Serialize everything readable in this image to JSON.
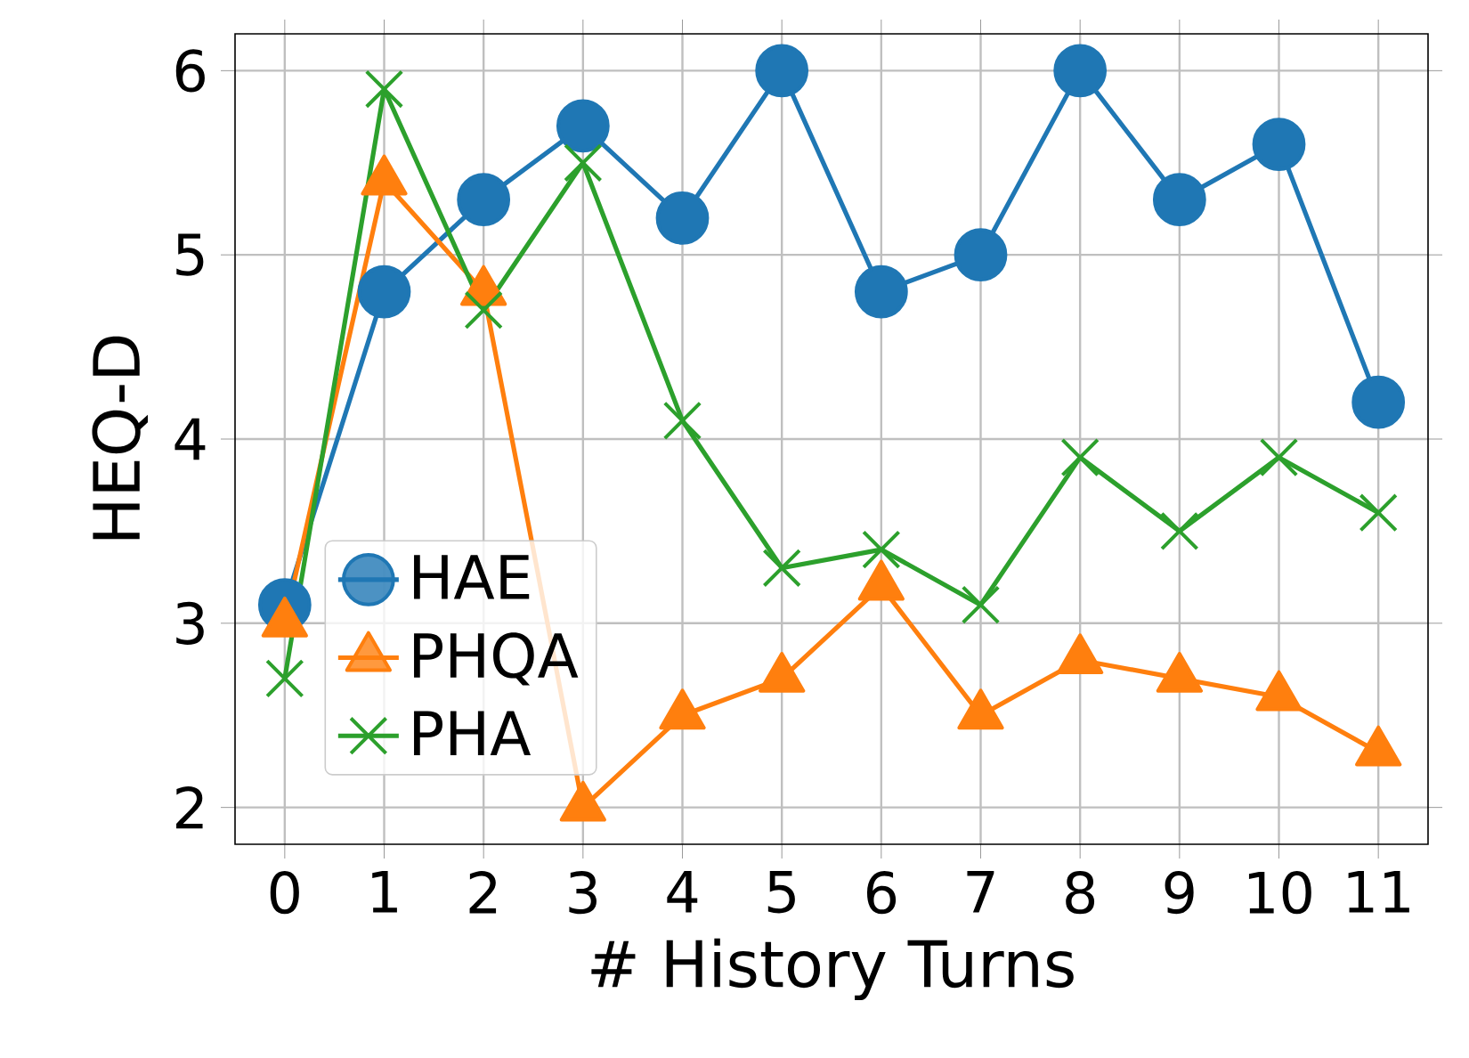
{
  "chart_data": {
    "type": "line",
    "xlabel": "# History Turns",
    "ylabel": "HEQ-D",
    "categories": [
      "0",
      "1",
      "2",
      "3",
      "4",
      "5",
      "6",
      "7",
      "8",
      "9",
      "10",
      "11"
    ],
    "series": [
      {
        "name": "HAE",
        "color": "#1f77b4",
        "marker": "circle",
        "values": [
          3.1,
          4.8,
          5.3,
          5.7,
          5.2,
          6.0,
          4.8,
          5.0,
          6.0,
          5.3,
          5.6,
          4.2
        ]
      },
      {
        "name": "PHQA",
        "color": "#ff7f0e",
        "marker": "triangle",
        "values": [
          3.0,
          5.4,
          4.8,
          2.0,
          2.5,
          2.7,
          3.2,
          2.5,
          2.8,
          2.7,
          2.6,
          2.3
        ]
      },
      {
        "name": "PHA",
        "color": "#2ca02c",
        "marker": "cross",
        "values": [
          2.7,
          5.9,
          4.7,
          5.5,
          4.1,
          3.3,
          3.4,
          3.1,
          3.9,
          3.5,
          3.9,
          3.6
        ]
      }
    ],
    "ylim": [
      1.8,
      6.2
    ],
    "yticks": [
      2,
      3,
      4,
      5,
      6
    ],
    "grid": true,
    "legend": "bottom left"
  }
}
